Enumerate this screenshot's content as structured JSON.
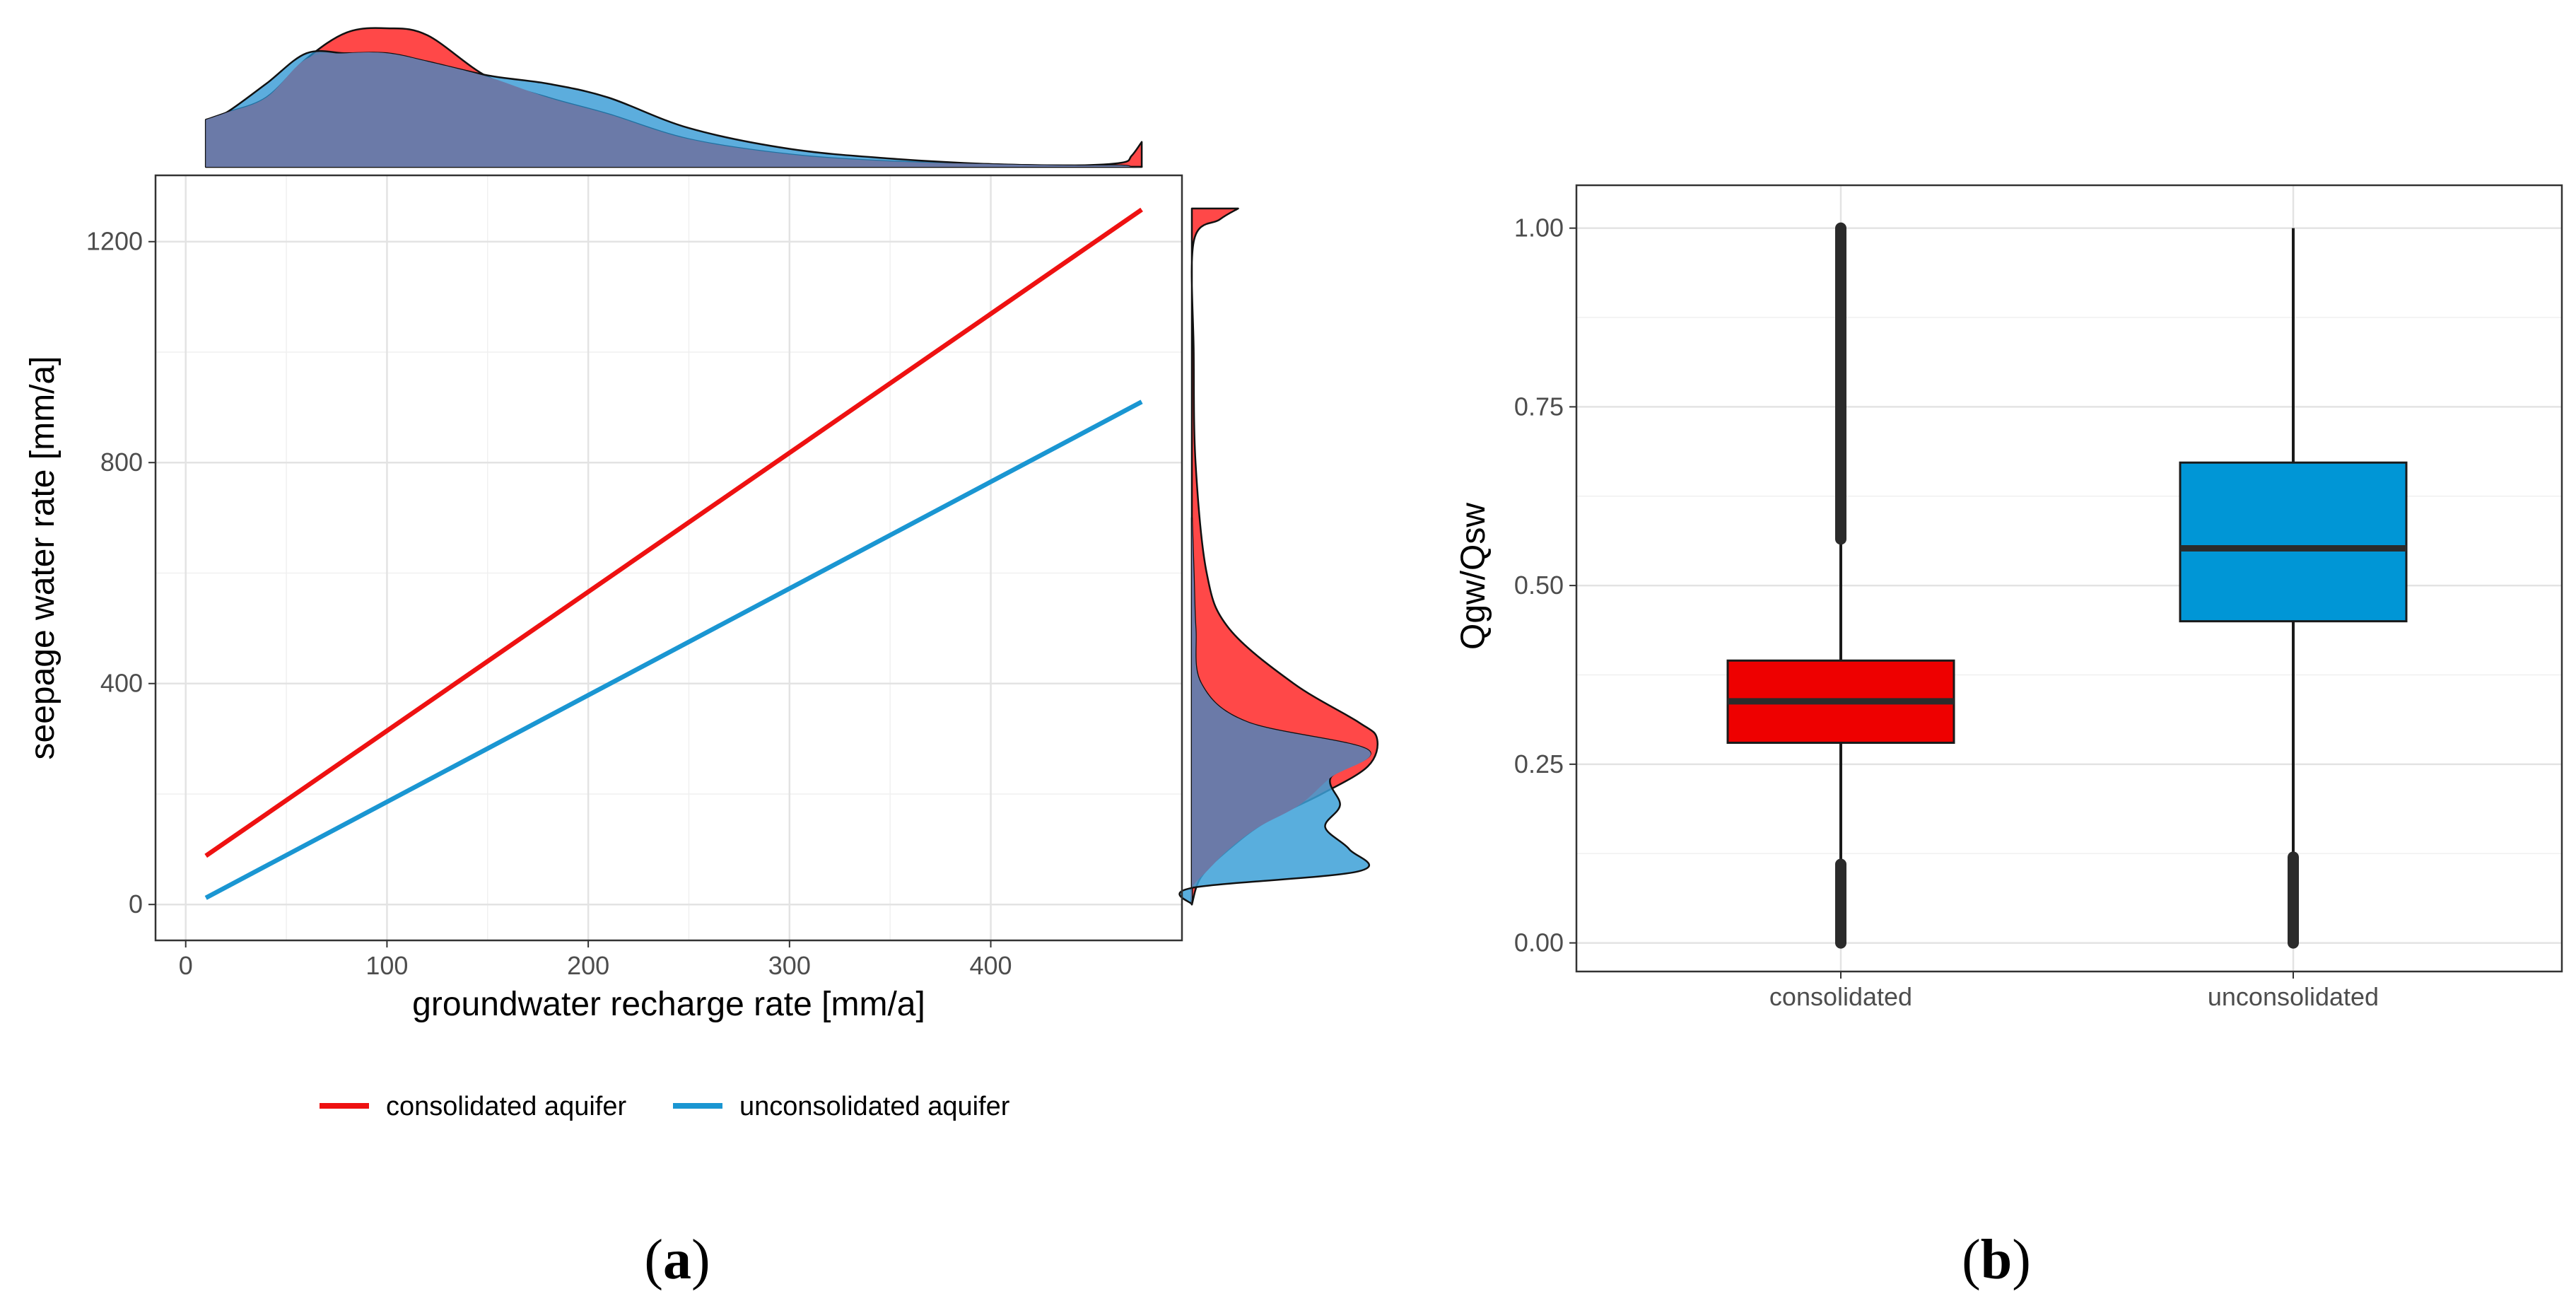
{
  "chart_data": [
    {
      "id": "a",
      "type": "line",
      "panel_label": "a",
      "xlabel": "groundwater recharge rate [mm/a]",
      "ylabel": "seepage water rate [mm/a]",
      "xlim": [
        -15,
        495
      ],
      "ylim": [
        -65,
        1320
      ],
      "xticks": [
        0,
        100,
        200,
        300,
        400
      ],
      "yticks": [
        0,
        400,
        800,
        1200
      ],
      "grid": true,
      "legend_position": "bottom",
      "series": [
        {
          "name": "consolidated aquifer",
          "color": "#ee1111",
          "x": [
            10,
            475
          ],
          "y": [
            88,
            1258
          ]
        },
        {
          "name": "unconsolidated aquifer",
          "color": "#1a96d2",
          "x": [
            10,
            475
          ],
          "y": [
            12,
            910
          ]
        }
      ],
      "marginal_top": {
        "type": "density",
        "axis": "x",
        "series": [
          {
            "name": "consolidated aquifer",
            "color": "#ee1111",
            "x": [
              10,
              20,
              40,
              60,
              80,
              100,
              120,
              150,
              180,
              210,
              250,
              300,
              350,
              400,
              440,
              465,
              470,
              475
            ],
            "density": [
              0.34,
              0.39,
              0.5,
              0.78,
              0.97,
              1.0,
              0.95,
              0.65,
              0.5,
              0.38,
              0.2,
              0.09,
              0.04,
              0.02,
              0.01,
              0.03,
              0.08,
              0.18
            ]
          },
          {
            "name": "unconsolidated aquifer",
            "color": "#1a96d2",
            "x": [
              10,
              20,
              40,
              60,
              80,
              100,
              120,
              150,
              180,
              210,
              250,
              300,
              350,
              400,
              440,
              465,
              470,
              475
            ],
            "density": [
              0.34,
              0.39,
              0.6,
              0.82,
              0.82,
              0.82,
              0.76,
              0.66,
              0.6,
              0.5,
              0.28,
              0.13,
              0.06,
              0.02,
              0.01,
              0.01,
              0.0,
              0.0
            ]
          }
        ]
      },
      "marginal_right": {
        "type": "density",
        "axis": "y",
        "series": [
          {
            "name": "consolidated aquifer",
            "color": "#ee1111",
            "y": [
              0,
              50,
              100,
              150,
              200,
              250,
              300,
              330,
              400,
              500,
              600,
              800,
              1000,
              1200,
              1240,
              1260
            ],
            "density": [
              0.0,
              0.05,
              0.2,
              0.4,
              0.7,
              0.95,
              1.0,
              0.9,
              0.55,
              0.2,
              0.08,
              0.02,
              0.01,
              0.01,
              0.15,
              0.25
            ]
          },
          {
            "name": "unconsolidated aquifer",
            "color": "#1a96d2",
            "y": [
              0,
              30,
              60,
              100,
              140,
              180,
              230,
              280,
              330,
              400,
              500,
              600,
              700
            ],
            "density": [
              0.0,
              0.0,
              0.9,
              0.85,
              0.72,
              0.8,
              0.75,
              0.95,
              0.3,
              0.05,
              0.02,
              0.01,
              0.0
            ]
          }
        ]
      }
    },
    {
      "id": "b",
      "type": "box",
      "panel_label": "b",
      "ylabel": "Qgw/Qsw",
      "ylim": [
        -0.04,
        1.06
      ],
      "yticks": [
        "0.00",
        "0.25",
        "0.50",
        "0.75",
        "1.00"
      ],
      "categories": [
        "consolidated",
        "unconsolidated"
      ],
      "grid": true,
      "boxes": [
        {
          "category": "consolidated",
          "color": "#ee0000",
          "whisker_low": 0.0,
          "q1": 0.28,
          "median": 0.338,
          "q3": 0.395,
          "whisker_high": 1.0,
          "outlier_ranges": [
            [
              0.0,
              0.11
            ],
            [
              0.565,
              1.0
            ]
          ]
        },
        {
          "category": "unconsolidated",
          "color": "#0096d6",
          "whisker_low": 0.0,
          "q1": 0.45,
          "median": 0.552,
          "q3": 0.672,
          "whisker_high": 1.0,
          "outlier_ranges": [
            [
              0.0,
              0.12
            ]
          ]
        }
      ]
    }
  ]
}
